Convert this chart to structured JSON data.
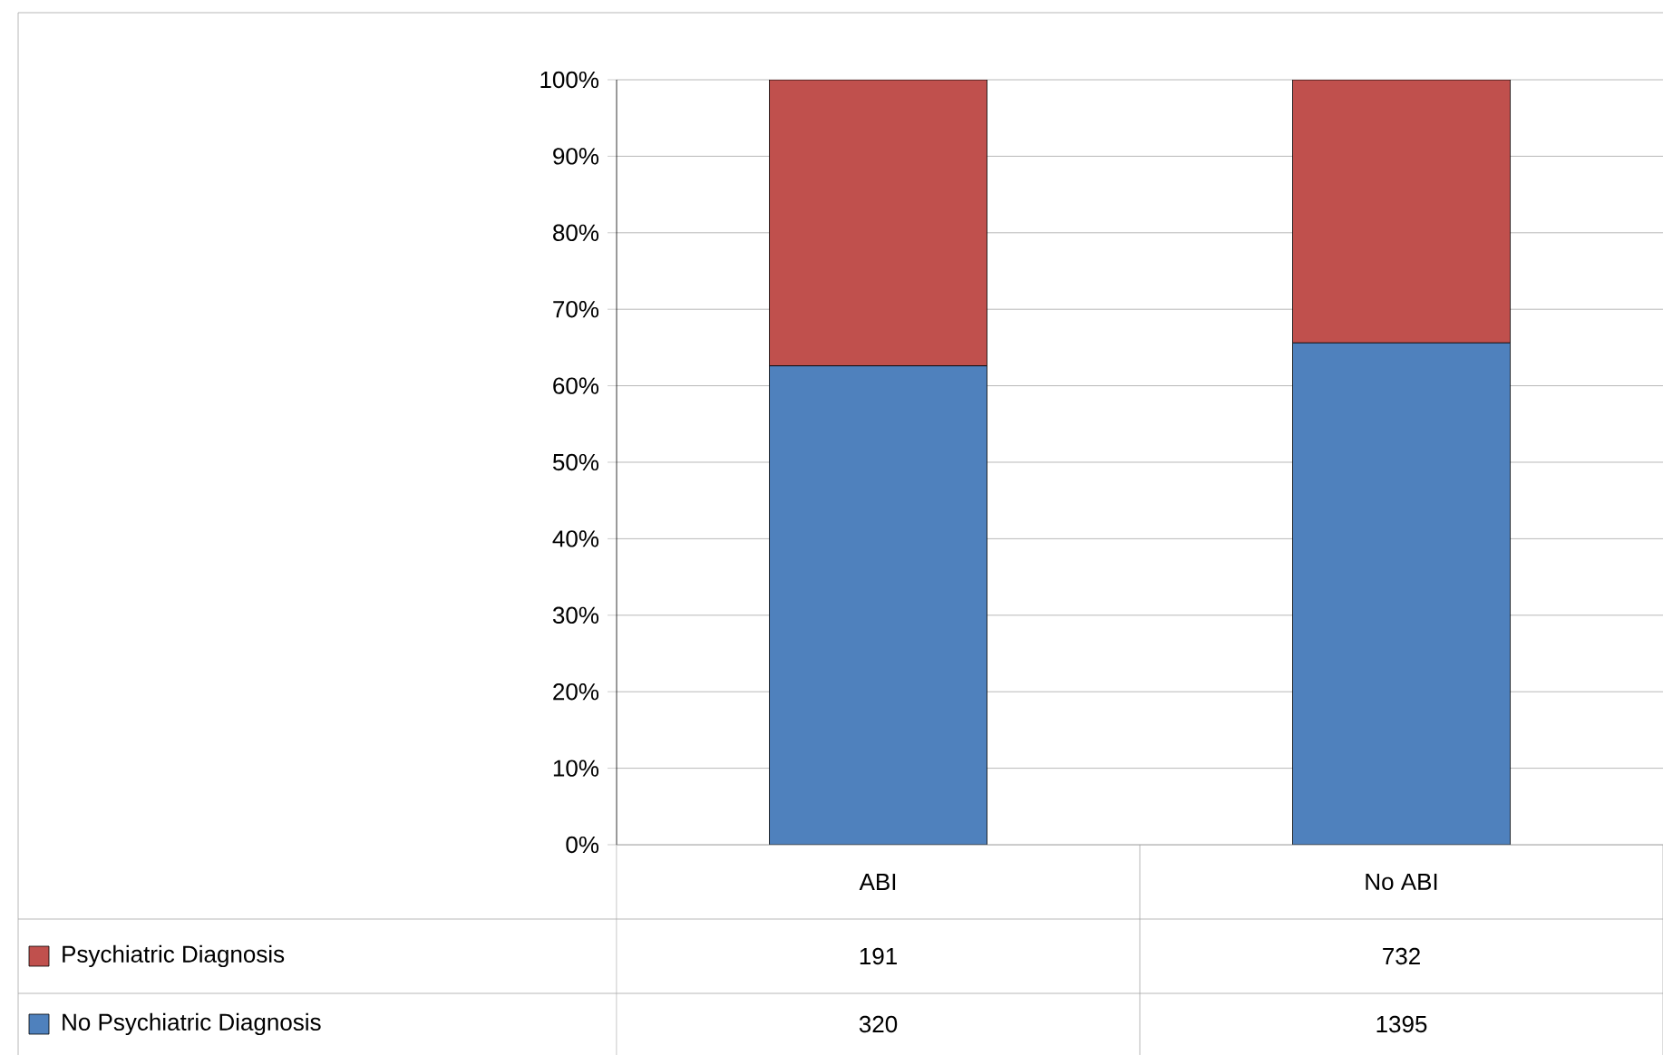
{
  "chart_data": {
    "type": "bar",
    "stacked": true,
    "categories": [
      "ABI",
      "No ABI"
    ],
    "series": [
      {
        "name": "No Psychiatric Diagnosis",
        "color": "#4f81bd",
        "values": [
          62.6,
          65.6
        ]
      },
      {
        "name": "Psychiatric Diagnosis",
        "color": "#c0504d",
        "values": [
          37.4,
          34.4
        ]
      }
    ],
    "ylim": [
      0,
      100
    ],
    "yticks": [
      {
        "value": 0,
        "label": "0%"
      },
      {
        "value": 10,
        "label": "10%"
      },
      {
        "value": 20,
        "label": "20%"
      },
      {
        "value": 30,
        "label": "30%"
      },
      {
        "value": 40,
        "label": "40%"
      },
      {
        "value": 50,
        "label": "50%"
      },
      {
        "value": 60,
        "label": "60%"
      },
      {
        "value": 70,
        "label": "70%"
      },
      {
        "value": 80,
        "label": "80%"
      },
      {
        "value": 90,
        "label": "90%"
      },
      {
        "value": 100,
        "label": "100%"
      }
    ],
    "annotations": [
      "191",
      "732",
      "320",
      "1395"
    ],
    "grid": "y",
    "legend": "bottom"
  }
}
